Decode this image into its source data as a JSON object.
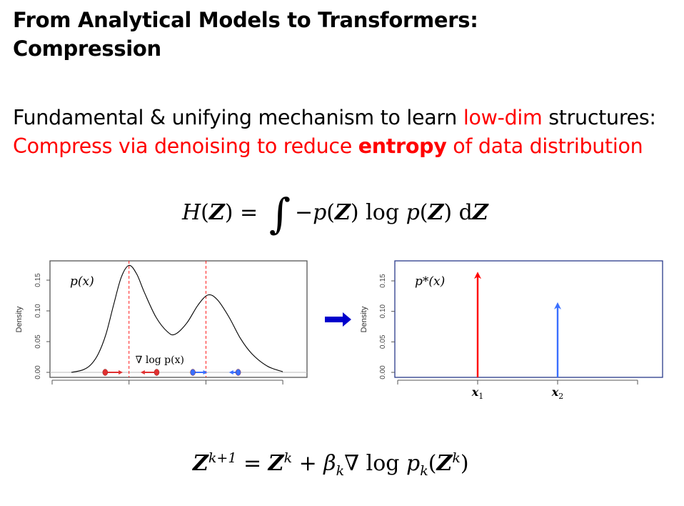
{
  "slide": {
    "title_line1": "From Analytical Models to Transformers:",
    "title_line2": "Compression",
    "body_line1_a": "Fundamental & unifying mechanism to learn ",
    "body_line1_highlight": "low-dim",
    "body_line1_b": " structures:",
    "body_line2_a": "Compress via denoising to reduce ",
    "body_line2_bold": "entropy",
    "body_line2_b": " of data distribution",
    "accent_color": "#ff0000",
    "equation_entropy": [
      {
        "t": "H",
        "s": "i"
      },
      {
        "t": "(",
        "s": "r"
      },
      {
        "t": "Z",
        "s": "b"
      },
      {
        "t": ") = ",
        "s": "r"
      },
      {
        "t": "∫",
        "s": "big"
      },
      {
        "t": "−",
        "s": "r"
      },
      {
        "t": "p",
        "s": "i"
      },
      {
        "t": "(",
        "s": "r"
      },
      {
        "t": "Z",
        "s": "b"
      },
      {
        "t": ") log ",
        "s": "r"
      },
      {
        "t": "p",
        "s": "i"
      },
      {
        "t": "(",
        "s": "r"
      },
      {
        "t": "Z",
        "s": "b"
      },
      {
        "t": ") d",
        "s": "r"
      },
      {
        "t": "Z",
        "s": "b"
      }
    ],
    "equation_update": [
      {
        "t": "Z",
        "s": "b"
      },
      {
        "t": "k+1",
        "s": "sup"
      },
      {
        "t": " = ",
        "s": "r"
      },
      {
        "t": "Z",
        "s": "b"
      },
      {
        "t": "k",
        "s": "sup"
      },
      {
        "t": " + ",
        "s": "r"
      },
      {
        "t": "β",
        "s": "i"
      },
      {
        "t": "k",
        "s": "sub"
      },
      {
        "t": "∇ log ",
        "s": "r"
      },
      {
        "t": "p",
        "s": "i"
      },
      {
        "t": "k",
        "s": "sub"
      },
      {
        "t": "(",
        "s": "r"
      },
      {
        "t": "Z",
        "s": "b"
      },
      {
        "t": "k",
        "s": "sup"
      },
      {
        "t": ")",
        "s": "r"
      }
    ]
  },
  "chart_data": [
    {
      "type": "line",
      "annotation": "p(x)",
      "gradient_label": "∇ log p(x)",
      "ylabel": "Density",
      "yticks": [
        "0.00",
        "0.05",
        "0.10",
        "0.15"
      ],
      "ylim": [
        0,
        0.18
      ],
      "xlim": [
        -0.05,
        3.3
      ],
      "xticks_unlabeled": [
        0,
        1,
        2,
        3
      ],
      "curve": {
        "x": [
          0.25,
          0.4,
          0.5,
          0.6,
          0.7,
          0.8,
          0.9,
          1.0,
          1.1,
          1.2,
          1.35,
          1.5,
          1.6,
          1.75,
          1.9,
          2.03,
          2.15,
          2.3,
          2.45,
          2.6,
          2.8,
          3.0
        ],
        "y": [
          0.0,
          0.004,
          0.012,
          0.03,
          0.062,
          0.11,
          0.155,
          0.174,
          0.16,
          0.13,
          0.09,
          0.066,
          0.062,
          0.08,
          0.11,
          0.126,
          0.118,
          0.09,
          0.055,
          0.03,
          0.01,
          0.001
        ],
        "color": "#000000"
      },
      "mode_lines": {
        "x": [
          1.0,
          2.0
        ],
        "color": "#ff0000",
        "style": "dashed"
      },
      "samples": [
        {
          "x": 0.69,
          "arrow_to": 0.92,
          "color": "#e03030"
        },
        {
          "x": 1.36,
          "arrow_to": 1.15,
          "color": "#e03030"
        },
        {
          "x": 1.83,
          "arrow_to": 2.02,
          "color": "#3a6fff"
        },
        {
          "x": 2.42,
          "arrow_to": 2.3,
          "color": "#3a6fff"
        }
      ],
      "frame_color": "#555555"
    },
    {
      "type": "bar",
      "annotation": "p*(x)",
      "ylabel": "Density",
      "yticks": [
        "0.00",
        "0.05",
        "0.10",
        "0.15"
      ],
      "ylim": [
        0,
        0.18
      ],
      "xlim": [
        -0.05,
        3.3
      ],
      "xticks_unlabeled": [
        0,
        3
      ],
      "spikes": [
        {
          "x": 1,
          "label": "x1",
          "value": 0.165,
          "color": "#ff0000"
        },
        {
          "x": 2,
          "label": "x2",
          "value": 0.115,
          "color": "#3a6fff"
        }
      ],
      "frame_color": "#2a3a8a"
    }
  ],
  "transition_arrow_color": "#0000cc"
}
